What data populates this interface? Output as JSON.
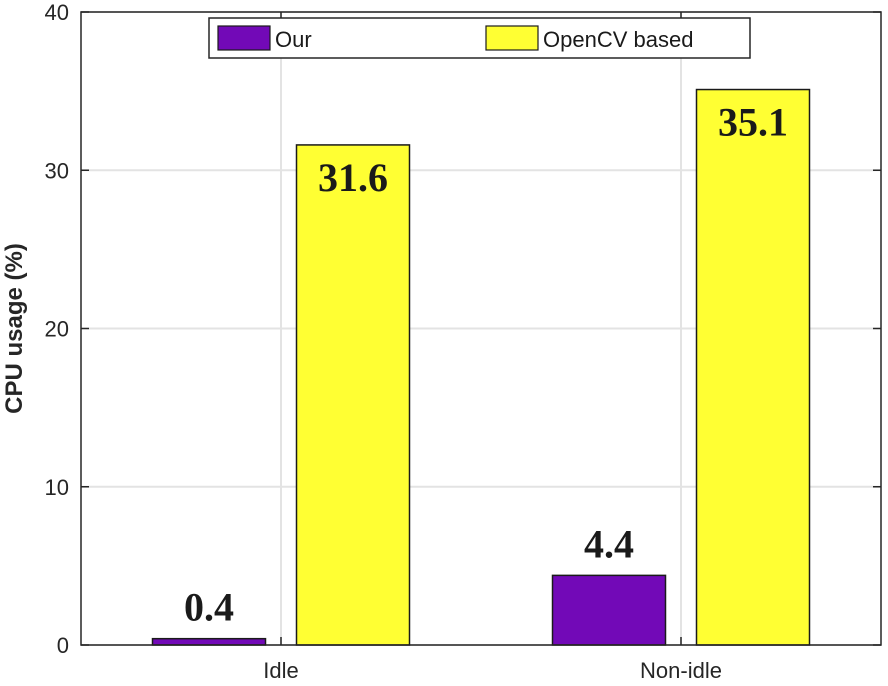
{
  "chart_data": {
    "type": "bar",
    "categories": [
      "Idle",
      "Non-idle"
    ],
    "series": [
      {
        "name": "Our",
        "values": [
          0.4,
          4.4
        ],
        "color": "#7209b7"
      },
      {
        "name": "OpenCV based",
        "values": [
          31.6,
          35.1
        ],
        "color": "#ffff33"
      }
    ],
    "data_labels": [
      [
        "0.4",
        "4.4"
      ],
      [
        "31.6",
        "35.1"
      ]
    ],
    "ylabel": "CPU usage (%)",
    "xlabel": "",
    "ylim": [
      0,
      40
    ],
    "yticks": [
      0,
      10,
      20,
      30,
      40
    ],
    "grid": true,
    "legend": "top-center"
  }
}
